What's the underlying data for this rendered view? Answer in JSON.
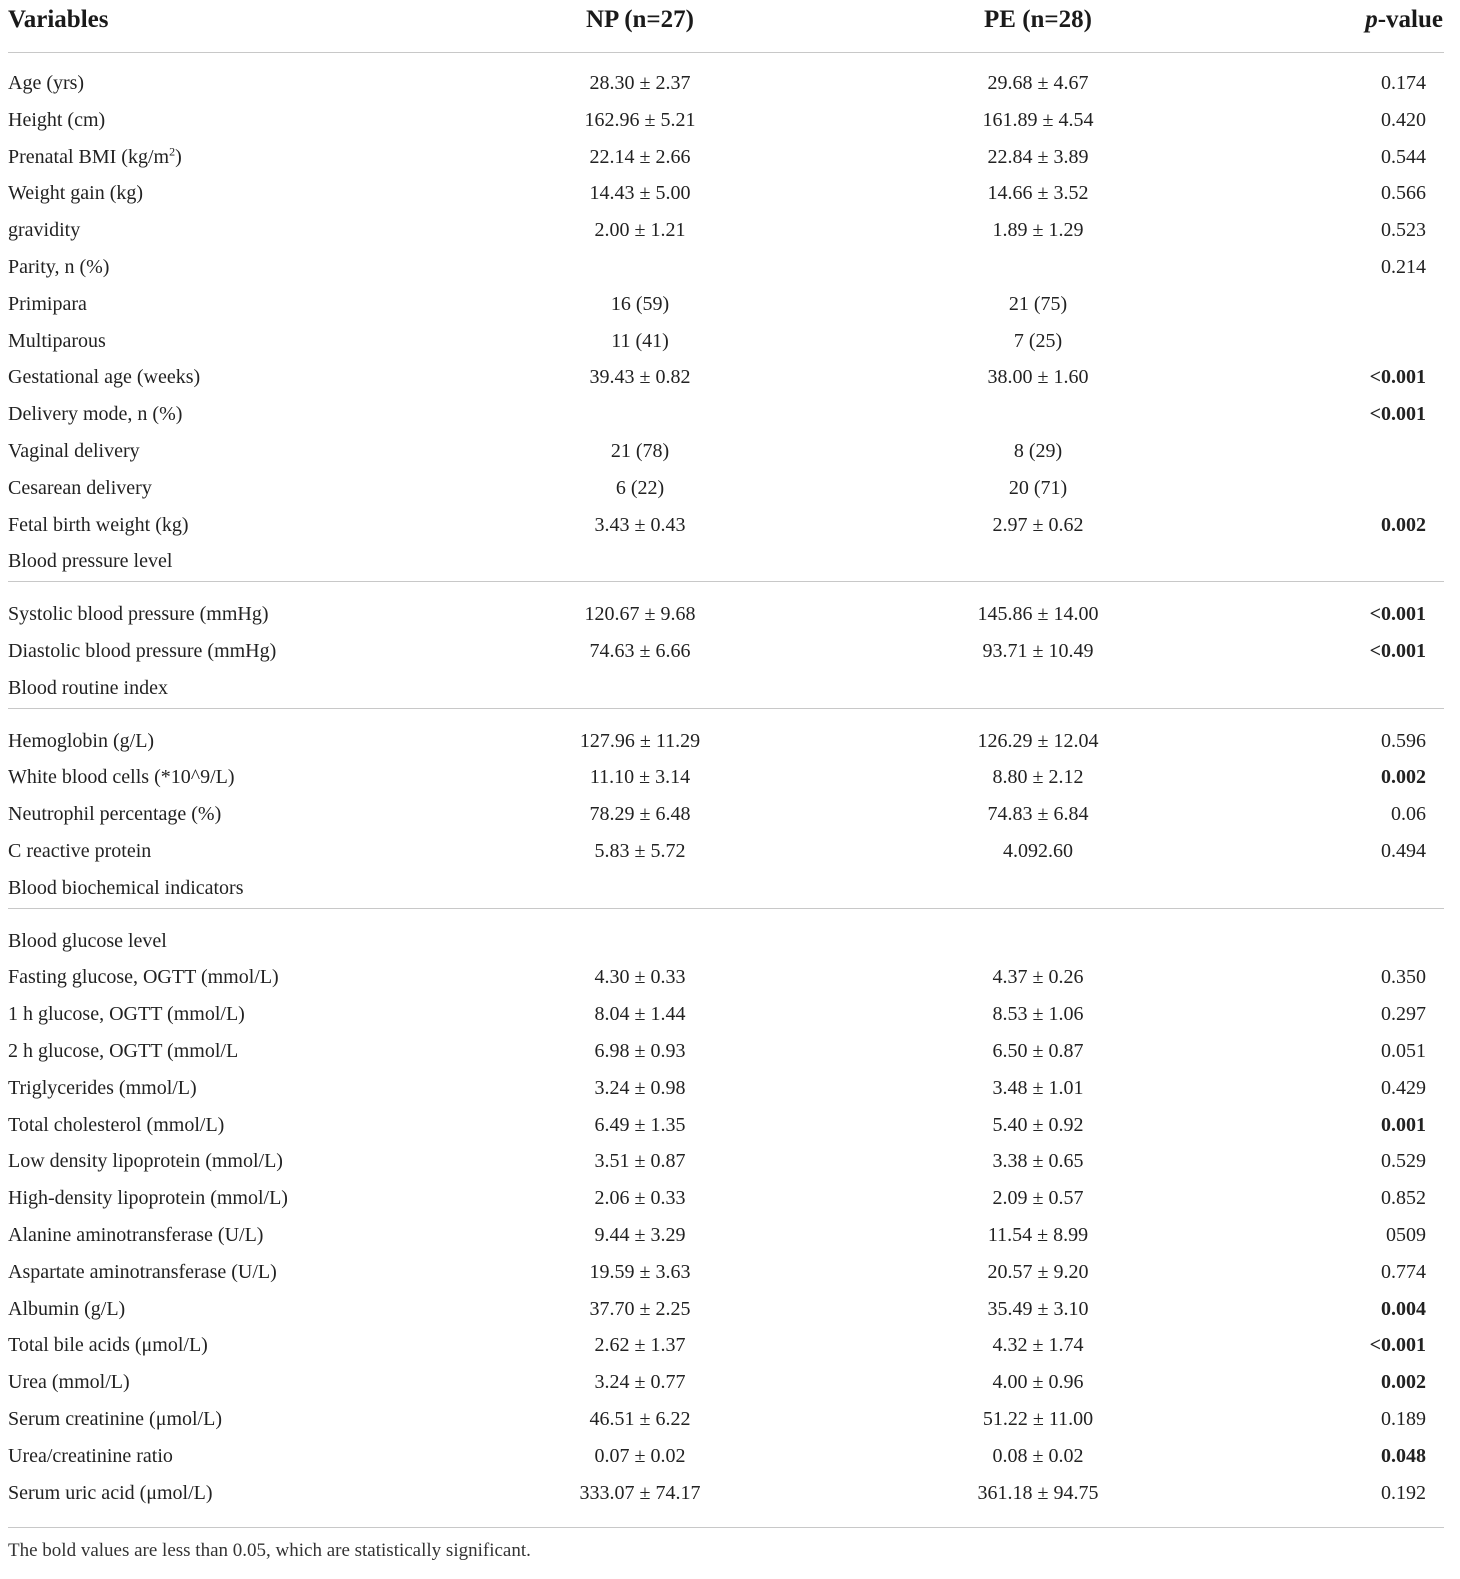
{
  "table": {
    "headers": {
      "variables": "Variables",
      "np": "NP (n=27)",
      "pe": "PE (n=28)",
      "p_italic": "p",
      "p_rest": "-value"
    },
    "rows": [
      {
        "label": "Age (yrs)",
        "np": "28.30 ± 2.37",
        "pe": "29.68 ± 4.67",
        "p": "0.174",
        "bold": false
      },
      {
        "label": "Height (cm)",
        "np": "162.96 ± 5.21",
        "pe": "161.89 ± 4.54",
        "p": "0.420",
        "bold": false
      },
      {
        "label": "Prenatal BMI (kg/m",
        "label_sup": "2",
        "label_after": ")",
        "np": "22.14 ± 2.66",
        "pe": "22.84 ± 3.89",
        "p": "0.544",
        "bold": false
      },
      {
        "label": "Weight gain (kg)",
        "np": "14.43 ± 5.00",
        "pe": "14.66 ± 3.52",
        "p": "0.566",
        "bold": false
      },
      {
        "label": "gravidity",
        "np": "2.00 ± 1.21",
        "pe": "1.89 ± 1.29",
        "p": "0.523",
        "bold": false
      },
      {
        "label": "Parity, n (%)",
        "np": "",
        "pe": "",
        "p": "0.214",
        "bold": false
      },
      {
        "label": "Primipara",
        "np": "16 (59)",
        "pe": "21 (75)",
        "p": "",
        "bold": false
      },
      {
        "label": "Multiparous",
        "np": "11 (41)",
        "pe": "7 (25)",
        "p": "",
        "bold": false
      },
      {
        "label": "Gestational age (weeks)",
        "np": "39.43 ± 0.82",
        "pe": "38.00 ± 1.60",
        "p": "<0.001",
        "bold": true
      },
      {
        "label": "Delivery mode, n (%)",
        "np": "",
        "pe": "",
        "p": "<0.001",
        "bold": true
      },
      {
        "label": "Vaginal delivery",
        "np": "21 (78)",
        "pe": "8 (29)",
        "p": "",
        "bold": false
      },
      {
        "label": "Cesarean delivery",
        "np": "6 (22)",
        "pe": "20 (71)",
        "p": "",
        "bold": false
      },
      {
        "label": "Fetal birth weight (kg)",
        "np": "3.43 ± 0.43",
        "pe": "2.97 ± 0.62",
        "p": "0.002",
        "bold": true
      },
      {
        "label": "Blood pressure level",
        "np": "",
        "pe": "",
        "p": "",
        "bold": false,
        "rule_after": true
      },
      {
        "label": "Systolic blood pressure (mmHg)",
        "np": "120.67 ± 9.68",
        "pe": "145.86 ± 14.00",
        "p": "<0.001",
        "bold": true
      },
      {
        "label": "Diastolic blood pressure (mmHg)",
        "np": "74.63 ± 6.66",
        "pe": "93.71 ± 10.49",
        "p": "<0.001",
        "bold": true
      },
      {
        "label": "Blood routine index",
        "np": "",
        "pe": "",
        "p": "",
        "bold": false,
        "rule_after": true
      },
      {
        "label": "Hemoglobin (g/L)",
        "np": "127.96 ± 11.29",
        "pe": "126.29 ± 12.04",
        "p": "0.596",
        "bold": false
      },
      {
        "label": "White blood cells (*10^9/L)",
        "np": "11.10 ± 3.14",
        "pe": "8.80 ± 2.12",
        "p": "0.002",
        "bold": true
      },
      {
        "label": "Neutrophil percentage (%)",
        "np": "78.29 ± 6.48",
        "pe": "74.83 ± 6.84",
        "p": "0.06",
        "bold": false
      },
      {
        "label": "C reactive protein",
        "np": "5.83 ± 5.72",
        "pe": "4.092.60",
        "p": "0.494",
        "bold": false
      },
      {
        "label": "Blood biochemical indicators",
        "np": "",
        "pe": "",
        "p": "",
        "bold": false,
        "rule_after": true
      },
      {
        "label": "Blood glucose level",
        "np": "",
        "pe": "",
        "p": "",
        "bold": false
      },
      {
        "label": "Fasting glucose, OGTT (mmol/L)",
        "np": "4.30 ± 0.33",
        "pe": "4.37 ± 0.26",
        "p": "0.350",
        "bold": false
      },
      {
        "label": "1 h glucose, OGTT (mmol/L)",
        "np": "8.04 ± 1.44",
        "pe": "8.53 ± 1.06",
        "p": "0.297",
        "bold": false
      },
      {
        "label": "2 h glucose, OGTT (mmol/L",
        "np": "6.98 ± 0.93",
        "pe": "6.50 ± 0.87",
        "p": "0.051",
        "bold": false
      },
      {
        "label": "Triglycerides (mmol/L)",
        "np": "3.24 ± 0.98",
        "pe": "3.48 ± 1.01",
        "p": "0.429",
        "bold": false
      },
      {
        "label": "Total cholesterol (mmol/L)",
        "np": "6.49 ± 1.35",
        "pe": "5.40 ± 0.92",
        "p": "0.001",
        "bold": true
      },
      {
        "label": "Low density lipoprotein (mmol/L)",
        "np": "3.51 ± 0.87",
        "pe": "3.38 ± 0.65",
        "p": "0.529",
        "bold": false
      },
      {
        "label": "High-density lipoprotein (mmol/L)",
        "np": "2.06 ± 0.33",
        "pe": "2.09 ± 0.57",
        "p": "0.852",
        "bold": false
      },
      {
        "label": "Alanine aminotransferase (U/L)",
        "np": "9.44 ± 3.29",
        "pe": "11.54 ± 8.99",
        "p": "0509",
        "bold": false
      },
      {
        "label": "Aspartate aminotransferase (U/L)",
        "np": "19.59 ± 3.63",
        "pe": "20.57 ± 9.20",
        "p": "0.774",
        "bold": false
      },
      {
        "label": "Albumin (g/L)",
        "np": "37.70 ± 2.25",
        "pe": "35.49 ± 3.10",
        "p": "0.004",
        "bold": true
      },
      {
        "label": "Total bile acids (μmol/L)",
        "np": "2.62 ± 1.37",
        "pe": "4.32 ± 1.74",
        "p": "<0.001",
        "bold": true
      },
      {
        "label": "Urea (mmol/L)",
        "np": "3.24 ± 0.77",
        "pe": "4.00 ± 0.96",
        "p": "0.002",
        "bold": true
      },
      {
        "label": "Serum creatinine (μmol/L)",
        "np": "46.51 ± 6.22",
        "pe": "51.22 ± 11.00",
        "p": "0.189",
        "bold": false
      },
      {
        "label": "Urea/creatinine ratio",
        "np": "0.07 ± 0.02",
        "pe": "0.08 ± 0.02",
        "p": "0.048",
        "bold": true
      },
      {
        "label": "Serum uric acid (μmol/L)",
        "np": "333.07 ± 74.17",
        "pe": "361.18 ± 94.75",
        "p": "0.192",
        "bold": false
      }
    ]
  },
  "footnote": "The bold values are less than 0.05, which are statistically significant."
}
